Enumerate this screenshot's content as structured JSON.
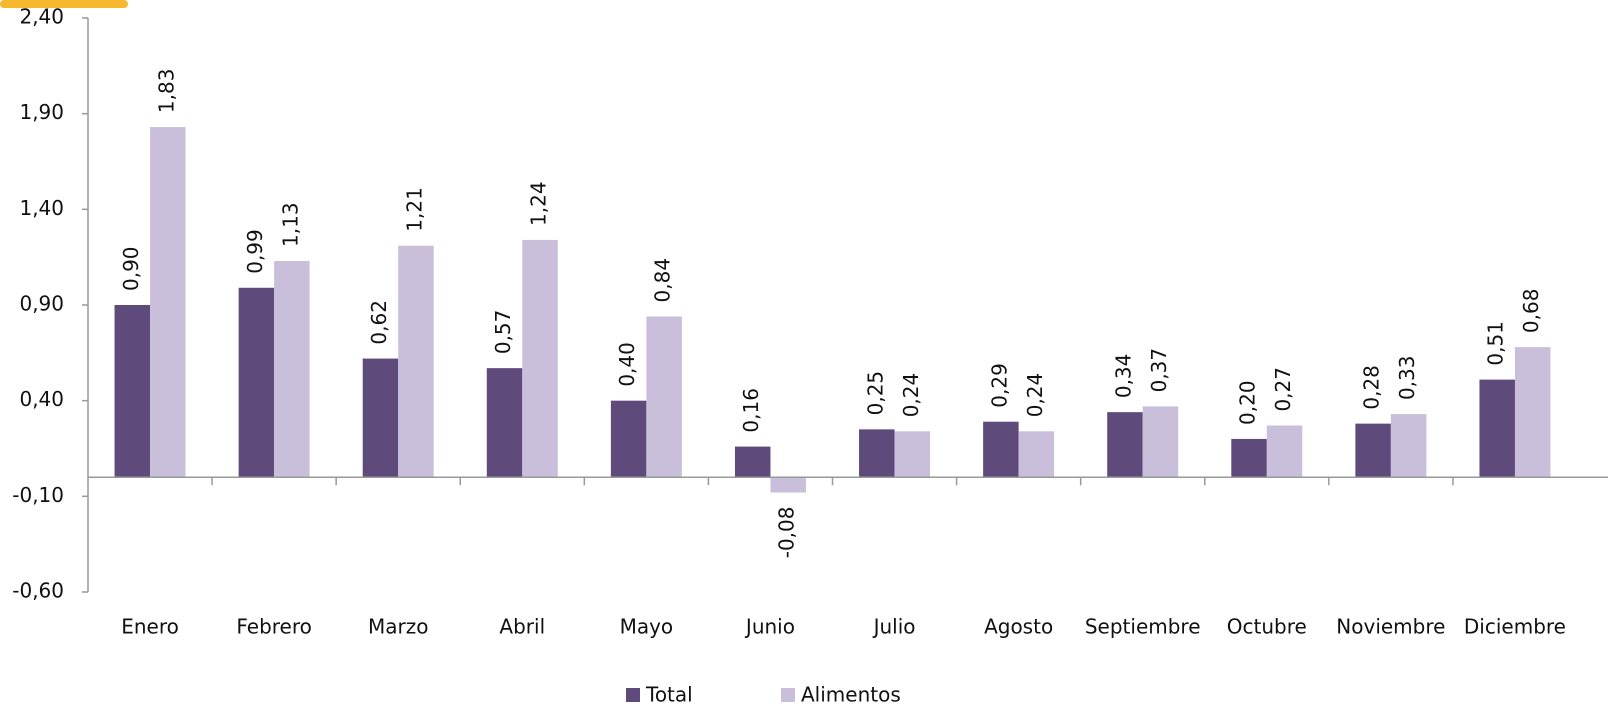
{
  "chart_data": {
    "type": "bar",
    "categories": [
      "Enero",
      "Febrero",
      "Marzo",
      "Abril",
      "Mayo",
      "Junio",
      "Julio",
      "Agosto",
      "Septiembre",
      "Octubre",
      "Noviembre",
      "Diciembre"
    ],
    "series": [
      {
        "name": "Total",
        "color": "#5f4b7b",
        "values": [
          0.9,
          0.99,
          0.62,
          0.57,
          0.4,
          0.16,
          0.25,
          0.29,
          0.34,
          0.2,
          0.28,
          0.51
        ],
        "value_labels": [
          "0,90",
          "0,99",
          "0,62",
          "0,57",
          "0,40",
          "0,16",
          "0,25",
          "0,29",
          "0,34",
          "0,20",
          "0,28",
          "0,51"
        ]
      },
      {
        "name": "Alimentos",
        "color": "#c9bfdb",
        "values": [
          1.83,
          1.13,
          1.21,
          1.24,
          0.84,
          -0.08,
          0.24,
          0.24,
          0.37,
          0.27,
          0.33,
          0.68
        ],
        "value_labels": [
          "1,83",
          "1,13",
          "1,21",
          "1,24",
          "0,84",
          "-0,08",
          "0,24",
          "0,24",
          "0,37",
          "0,27",
          "0,33",
          "0,68"
        ]
      }
    ],
    "ylim": [
      -0.6,
      2.4
    ],
    "yticks": [
      {
        "value": -0.6,
        "label": "-0,60"
      },
      {
        "value": -0.1,
        "label": "-0,10"
      },
      {
        "value": 0.4,
        "label": "0,40"
      },
      {
        "value": 0.9,
        "label": "0,90"
      },
      {
        "value": 1.4,
        "label": "1,40"
      },
      {
        "value": 1.9,
        "label": "1,90"
      },
      {
        "value": 2.4,
        "label": "2,40"
      }
    ],
    "grid": false,
    "legend": "bottom"
  }
}
